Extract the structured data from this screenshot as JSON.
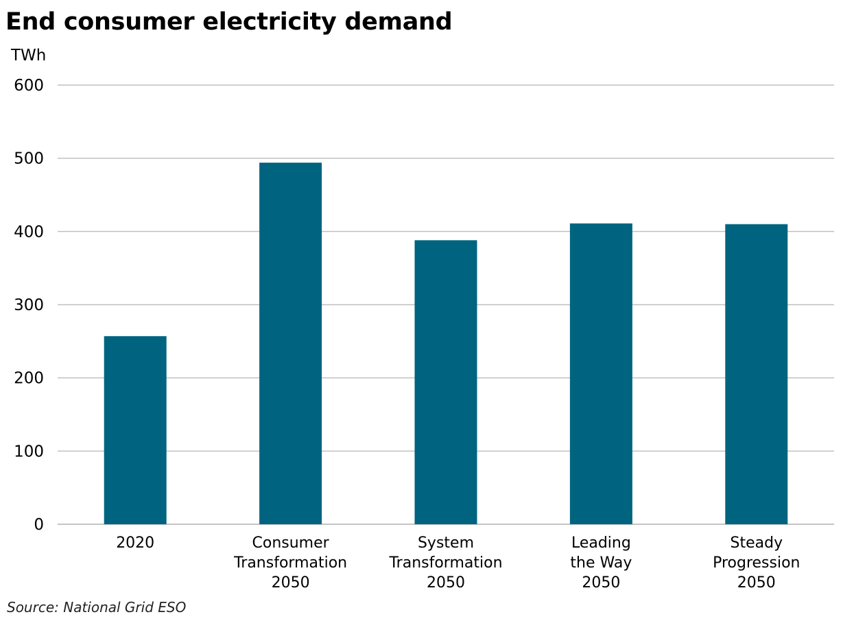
{
  "chart_data": {
    "type": "bar",
    "title": "End consumer electricity demand",
    "ylabel": "TWh",
    "xlabel": "",
    "ylim": [
      0,
      600
    ],
    "yticks": [
      0,
      100,
      200,
      300,
      400,
      500,
      600
    ],
    "categories": [
      [
        "2020"
      ],
      [
        "Consumer",
        "Transformation",
        "2050"
      ],
      [
        "System",
        "Transformation",
        "2050"
      ],
      [
        "Leading",
        "the Way",
        "2050"
      ],
      [
        "Steady",
        "Progression",
        "2050"
      ]
    ],
    "values": [
      257,
      494,
      388,
      411,
      410
    ],
    "grid": true,
    "legend": "none",
    "source": "Source: National Grid ESO",
    "colors": {
      "bar": "#006480",
      "grid": "#c0c0c0",
      "axis": "#b0b0b0"
    }
  }
}
